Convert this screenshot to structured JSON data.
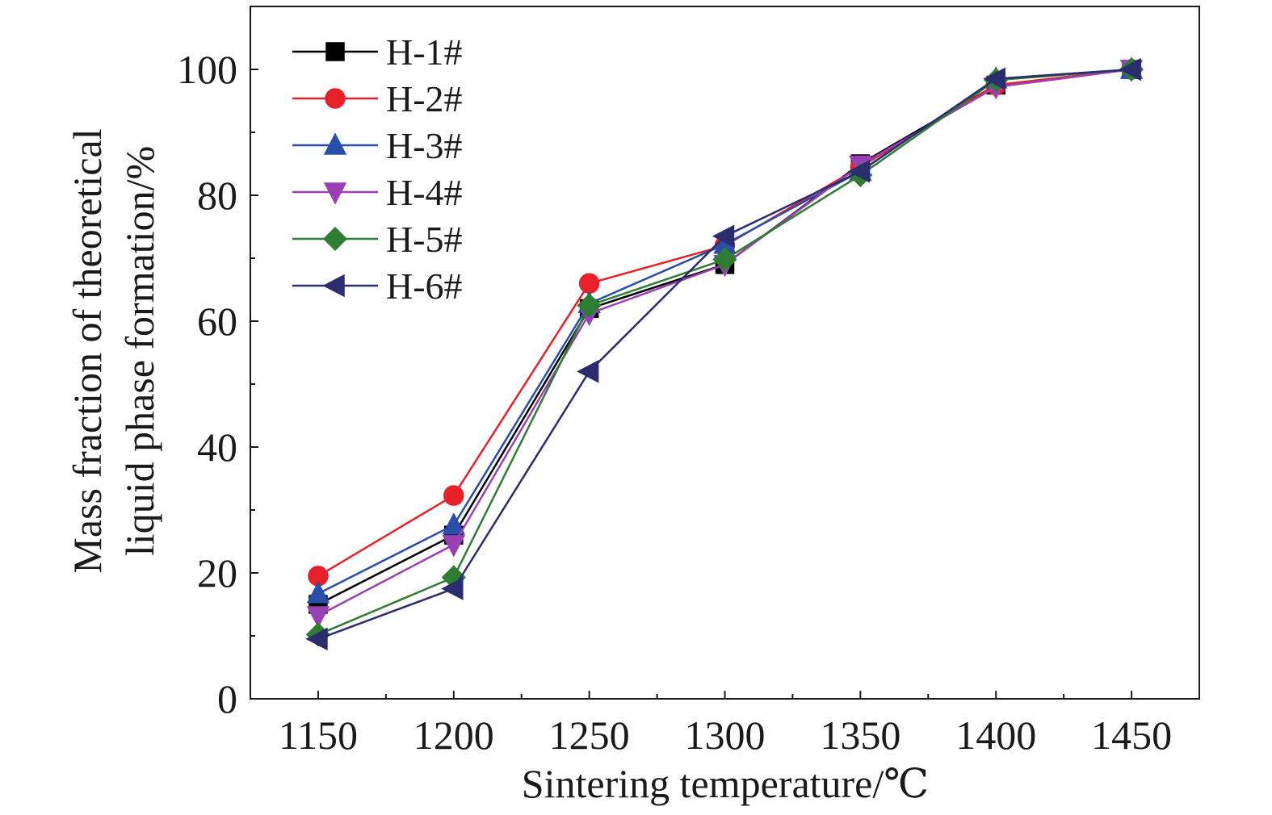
{
  "chart_data": {
    "type": "line",
    "title": "",
    "xlabel": "Sintering temperature/℃",
    "ylabel_lines": [
      "Mass fraction of theoretical",
      "liquid phase formation/%"
    ],
    "x": [
      1150,
      1200,
      1250,
      1300,
      1350,
      1400,
      1450
    ],
    "xlim": [
      1125,
      1475
    ],
    "ylim": [
      0,
      110
    ],
    "xticks": [
      "1150",
      "1200",
      "1250",
      "1300",
      "1350",
      "1400",
      "1450"
    ],
    "yticks": [
      "0",
      "20",
      "40",
      "60",
      "80",
      "100"
    ],
    "legend_position": "top-left",
    "grid": false,
    "series": [
      {
        "name": "H-1#",
        "color": "#000000",
        "marker": "square",
        "values": [
          15.0,
          26.0,
          62.0,
          69.0,
          85.0,
          97.5,
          100.0
        ]
      },
      {
        "name": "H-2#",
        "color": "#e8202a",
        "marker": "circle",
        "values": [
          19.5,
          32.3,
          66.0,
          72.0,
          84.5,
          97.5,
          100.0
        ]
      },
      {
        "name": "H-3#",
        "color": "#2a4fa8",
        "marker": "triangle-up",
        "values": [
          16.7,
          27.6,
          62.8,
          72.2,
          83.8,
          98.5,
          100.0
        ]
      },
      {
        "name": "H-4#",
        "color": "#9b3fb5",
        "marker": "triangle-down",
        "values": [
          13.2,
          24.5,
          61.2,
          69.0,
          84.8,
          97.2,
          100.0
        ]
      },
      {
        "name": "H-5#",
        "color": "#2e7d32",
        "marker": "diamond",
        "values": [
          10.2,
          19.3,
          62.5,
          69.8,
          83.2,
          98.3,
          100.0
        ]
      },
      {
        "name": "H-6#",
        "color": "#2b2d6e",
        "marker": "triangle-left",
        "values": [
          9.5,
          17.5,
          52.0,
          73.5,
          83.8,
          98.5,
          100.0
        ]
      }
    ]
  }
}
